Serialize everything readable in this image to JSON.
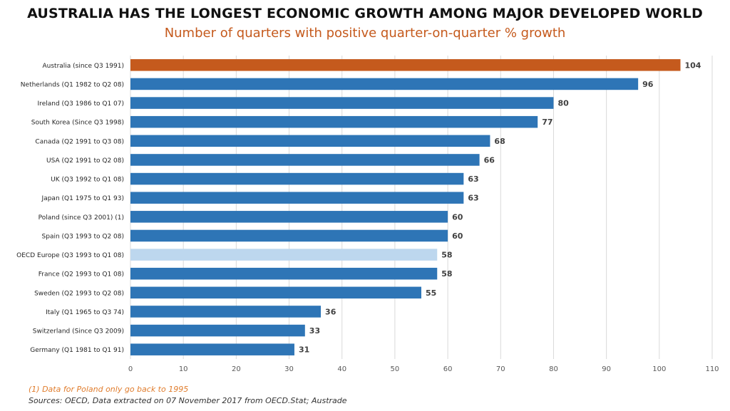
{
  "chart_data": {
    "type": "bar",
    "orientation": "horizontal",
    "title": "AUSTRALIA HAS THE LONGEST ECONOMIC GROWTH AMONG MAJOR DEVELOPED WORLD",
    "subtitle": "Number of quarters with positive quarter-on-quarter % growth",
    "categories": [
      "Australia (since Q3 1991)",
      "Netherlands (Q1 1982 to Q2 08)",
      "Ireland (Q3 1986 to Q1 07)",
      "South Korea (Since Q3 1998)",
      "Canada (Q2 1991 to Q3 08)",
      "USA (Q2 1991 to Q2 08)",
      "UK (Q3 1992 to Q1 08)",
      "Japan (Q1 1975 to Q1 93)",
      "Poland (since Q3 2001) (1)",
      "Spain (Q3 1993 to Q2 08)",
      "OECD Europe (Q3 1993 to Q1 08)",
      "France (Q2 1993 to Q1 08)",
      "Sweden (Q2 1993 to Q2 08)",
      "Italy (Q1 1965 to Q3 74)",
      "Switzerland (Since Q3 2009)",
      "Germany (Q1 1981 to Q1 91)"
    ],
    "values": [
      104,
      96,
      80,
      77,
      68,
      66,
      63,
      63,
      60,
      60,
      58,
      58,
      55,
      36,
      33,
      31
    ],
    "bar_colors": [
      "#c55a1d",
      "#2e75b6",
      "#2e75b6",
      "#2e75b6",
      "#2e75b6",
      "#2e75b6",
      "#2e75b6",
      "#2e75b6",
      "#2e75b6",
      "#2e75b6",
      "#bdd7ee",
      "#2e75b6",
      "#2e75b6",
      "#2e75b6",
      "#2e75b6",
      "#2e75b6"
    ],
    "xlim": [
      0,
      110
    ],
    "xticks": [
      0,
      10,
      20,
      30,
      40,
      50,
      60,
      70,
      80,
      90,
      100,
      110
    ],
    "grid": true,
    "data_labels": true,
    "xlabel": "",
    "ylabel": ""
  },
  "footnote": "(1) Data for Poland only go back to 1995",
  "source": "Sources: OECD, Data extracted on 07 November 2017 from OECD.Stat; Austrade"
}
